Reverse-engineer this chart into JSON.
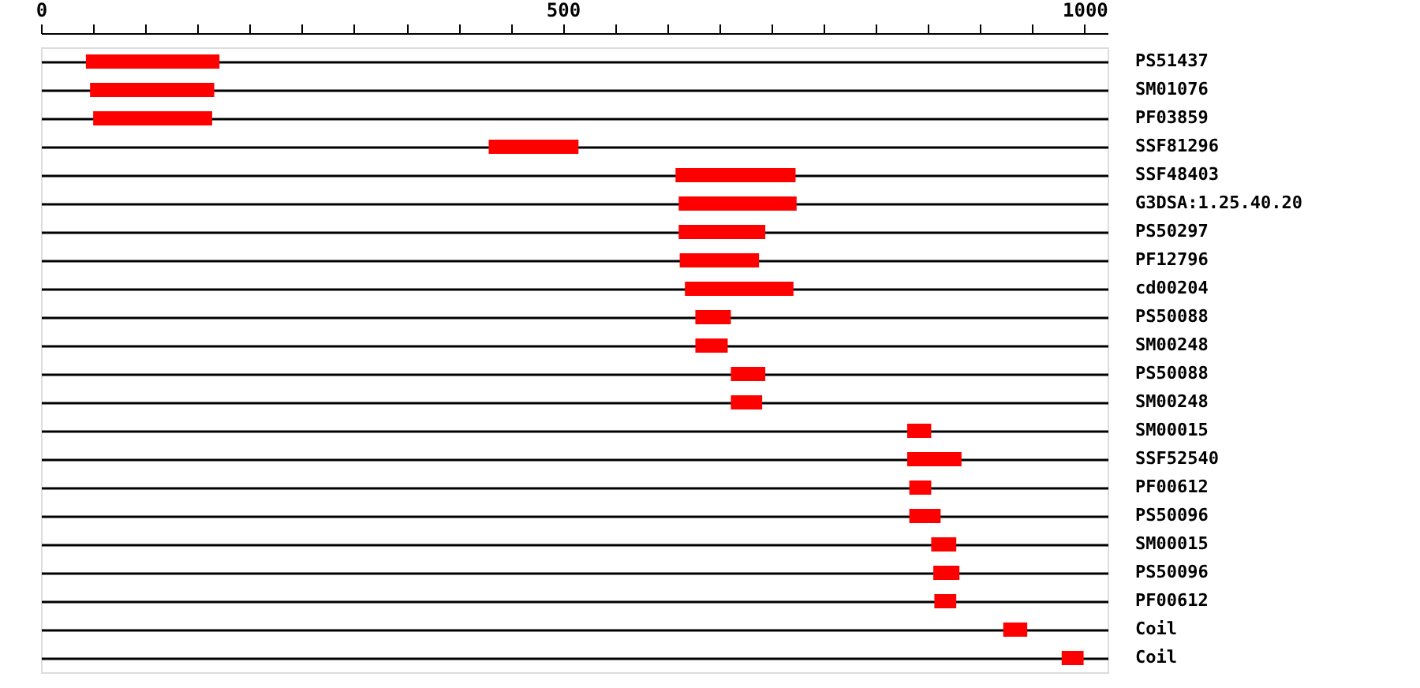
{
  "chart_data": {
    "type": "bar",
    "orientation": "horizontal",
    "color": "#ff0000",
    "grid": "y",
    "categories": [
      "PS51437",
      "SM01076",
      "PF03859",
      "SSF81296",
      "SSF48403",
      "G3DSA:1.25.40.20",
      "PS50297",
      "PF12796",
      "cd00204",
      "PS50088",
      "SM00248",
      "PS50088",
      "SM00248",
      "SM00015",
      "SSF52540",
      "PF00612",
      "PS50096",
      "SM00015",
      "PS50096",
      "PF00612",
      "Coil",
      "Coil"
    ],
    "base": [
      43,
      47,
      50,
      429,
      608,
      611,
      611,
      612,
      617,
      627,
      627,
      661,
      661,
      830,
      830,
      832,
      832,
      853,
      855,
      856,
      922,
      978
    ],
    "values": [
      128,
      119,
      114,
      86,
      115,
      113,
      83,
      76,
      104,
      34,
      31,
      33,
      30,
      23,
      52,
      21,
      30,
      24,
      25,
      21,
      23,
      21
    ],
    "xlim": [
      0,
      1022
    ],
    "xticks": [
      0,
      {
        "value": 50,
        "label": null
      },
      {
        "value": 100,
        "label": null
      },
      {
        "value": 150,
        "label": null
      },
      {
        "value": 200,
        "label": null
      },
      {
        "value": 250,
        "label": null
      },
      {
        "value": 300,
        "label": null
      },
      {
        "value": 350,
        "label": null
      },
      {
        "value": 400,
        "label": null
      },
      {
        "value": 450,
        "label": null
      },
      500,
      {
        "value": 550,
        "label": null
      },
      {
        "value": 600,
        "label": null
      },
      {
        "value": 650,
        "label": null
      },
      {
        "value": 700,
        "label": null
      },
      {
        "value": 750,
        "label": null
      },
      {
        "value": 800,
        "label": null
      },
      {
        "value": 850,
        "label": null
      },
      {
        "value": 900,
        "label": null
      },
      {
        "value": 950,
        "label": null
      },
      1000
    ]
  }
}
